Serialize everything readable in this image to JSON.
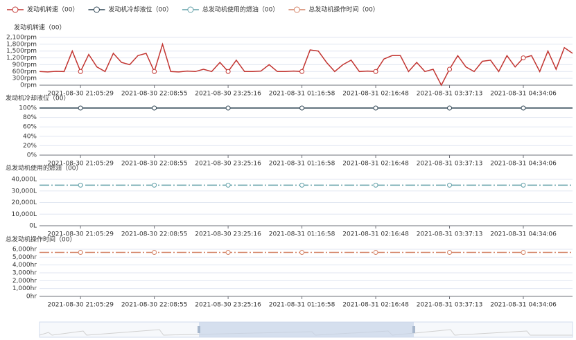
{
  "chart_data": [
    {
      "type": "line",
      "title": "发动机转速（00）",
      "categories": [
        null,
        null,
        null,
        null,
        null,
        "2021-08-30 21:05:29",
        null,
        null,
        null,
        null,
        null,
        null,
        null,
        null,
        "2021-08-30 22:08:55",
        null,
        null,
        null,
        null,
        null,
        null,
        null,
        null,
        "2021-08-30 23:25:16",
        null,
        null,
        null,
        null,
        null,
        null,
        null,
        null,
        "2021-08-31 01:16:58",
        null,
        null,
        null,
        null,
        null,
        null,
        null,
        null,
        "2021-08-31 02:16:48",
        null,
        null,
        null,
        null,
        null,
        null,
        null,
        null,
        "2021-08-31 03:37:13",
        null,
        null,
        null,
        null,
        null,
        null,
        null,
        null,
        "2021-08-31 04:34:06",
        null,
        null,
        null,
        null,
        null,
        null
      ],
      "series": [
        {
          "name": "发动机转速（00）",
          "color": "#c23531",
          "values": [
            600,
            580,
            610,
            600,
            1500,
            600,
            1350,
            800,
            600,
            1400,
            1000,
            900,
            1300,
            1400,
            600,
            1800,
            600,
            580,
            620,
            600,
            700,
            600,
            1000,
            600,
            1100,
            600,
            600,
            620,
            900,
            600,
            600,
            620,
            600,
            1550,
            1500,
            1000,
            600,
            900,
            1100,
            600,
            620,
            600,
            1150,
            1300,
            1300,
            600,
            1000,
            600,
            700,
            0,
            700,
            1300,
            800,
            600,
            1050,
            1100,
            600,
            1300,
            800,
            1200,
            1300,
            600,
            1500,
            700,
            1650,
            1400
          ]
        }
      ],
      "ylim": [
        0,
        2100
      ],
      "yticks": [
        {
          "value": 0,
          "label": "0rpm"
        },
        {
          "value": 300,
          "label": "300rpm"
        },
        {
          "value": 600,
          "label": "600rpm"
        },
        {
          "value": 900,
          "label": "900rpm"
        },
        {
          "value": 1200,
          "label": "1,200rpm"
        },
        {
          "value": 1500,
          "label": "1,500rpm"
        },
        {
          "value": 1800,
          "label": "1,800rpm"
        },
        {
          "value": 2100,
          "label": "2,100rpm"
        }
      ],
      "grid": true,
      "line_style": "solid"
    },
    {
      "type": "line",
      "title": "发动机冷却液位（00）",
      "categories": [
        null,
        null,
        null,
        null,
        null,
        "2021-08-30 21:05:29",
        null,
        null,
        null,
        null,
        null,
        null,
        null,
        null,
        "2021-08-30 22:08:55",
        null,
        null,
        null,
        null,
        null,
        null,
        null,
        null,
        "2021-08-30 23:25:16",
        null,
        null,
        null,
        null,
        null,
        null,
        null,
        null,
        "2021-08-31 01:16:58",
        null,
        null,
        null,
        null,
        null,
        null,
        null,
        null,
        "2021-08-31 02:16:48",
        null,
        null,
        null,
        null,
        null,
        null,
        null,
        null,
        "2021-08-31 03:37:13",
        null,
        null,
        null,
        null,
        null,
        null,
        null,
        null,
        "2021-08-31 04:34:06",
        null,
        null,
        null,
        null,
        null,
        null
      ],
      "series": [
        {
          "name": "发动机冷却液位（00）",
          "color": "#2f4554",
          "values": [
            100,
            100,
            100,
            100,
            100,
            100,
            100,
            100,
            100,
            100,
            100,
            100,
            100,
            100,
            100,
            100,
            100,
            100,
            100,
            100,
            100,
            100,
            100,
            100,
            100,
            100,
            100,
            100,
            100,
            100,
            100,
            100,
            100,
            100,
            100,
            100,
            100,
            100,
            100,
            100,
            100,
            100,
            100,
            100,
            100,
            100,
            100,
            100,
            100,
            100,
            100,
            100,
            100,
            100,
            100,
            100,
            100,
            100,
            100,
            100,
            100,
            100,
            100,
            100,
            100,
            100
          ]
        }
      ],
      "ylim": [
        0,
        100
      ],
      "yticks": [
        {
          "value": 0,
          "label": "0%"
        },
        {
          "value": 20,
          "label": "20%"
        },
        {
          "value": 40,
          "label": "40%"
        },
        {
          "value": 60,
          "label": "60%"
        },
        {
          "value": 80,
          "label": "80%"
        },
        {
          "value": 100,
          "label": "100%"
        }
      ],
      "grid": true,
      "line_style": "solid"
    },
    {
      "type": "line",
      "title": "总发动机使用的燃油（00）",
      "categories": [
        null,
        null,
        null,
        null,
        null,
        "2021-08-30 21:05:29",
        null,
        null,
        null,
        null,
        null,
        null,
        null,
        null,
        "2021-08-30 22:08:55",
        null,
        null,
        null,
        null,
        null,
        null,
        null,
        null,
        "2021-08-30 23:25:16",
        null,
        null,
        null,
        null,
        null,
        null,
        null,
        null,
        "2021-08-31 01:16:58",
        null,
        null,
        null,
        null,
        null,
        null,
        null,
        null,
        "2021-08-31 02:16:48",
        null,
        null,
        null,
        null,
        null,
        null,
        null,
        null,
        "2021-08-31 03:37:13",
        null,
        null,
        null,
        null,
        null,
        null,
        null,
        null,
        "2021-08-31 04:34:06",
        null,
        null,
        null,
        null,
        null,
        null
      ],
      "series": [
        {
          "name": "总发动机使用的燃油（00）",
          "color": "#61a0a8",
          "values": [
            35000,
            35000,
            35000,
            35000,
            35000,
            35000,
            35000,
            35000,
            35000,
            35000,
            35000,
            35000,
            35000,
            35000,
            35000,
            35000,
            35000,
            35000,
            35000,
            35000,
            35000,
            35000,
            35000,
            35000,
            35000,
            35000,
            35000,
            35000,
            35000,
            35000,
            35000,
            35000,
            35000,
            35000,
            35000,
            35000,
            35000,
            35000,
            35000,
            35000,
            35000,
            35000,
            35000,
            35000,
            35000,
            35000,
            35000,
            35000,
            35000,
            35000,
            35000,
            35000,
            35000,
            35000,
            35000,
            35000,
            35000,
            35000,
            35000,
            35000,
            35000,
            35000,
            35000,
            35000,
            35000,
            35000
          ]
        }
      ],
      "ylim": [
        0,
        40000
      ],
      "yticks": [
        {
          "value": 0,
          "label": "0L"
        },
        {
          "value": 10000,
          "label": "10,000L"
        },
        {
          "value": 20000,
          "label": "20,000L"
        },
        {
          "value": 30000,
          "label": "30,000L"
        },
        {
          "value": 40000,
          "label": "40,000L"
        }
      ],
      "grid": true,
      "line_style": "dash-dot"
    },
    {
      "type": "line",
      "title": "总发动机操作时间（00）",
      "categories": [
        null,
        null,
        null,
        null,
        null,
        "2021-08-30 21:05:29",
        null,
        null,
        null,
        null,
        null,
        null,
        null,
        null,
        "2021-08-30 22:08:55",
        null,
        null,
        null,
        null,
        null,
        null,
        null,
        null,
        "2021-08-30 23:25:16",
        null,
        null,
        null,
        null,
        null,
        null,
        null,
        null,
        "2021-08-31 01:16:58",
        null,
        null,
        null,
        null,
        null,
        null,
        null,
        null,
        "2021-08-31 02:16:48",
        null,
        null,
        null,
        null,
        null,
        null,
        null,
        null,
        "2021-08-31 03:37:13",
        null,
        null,
        null,
        null,
        null,
        null,
        null,
        null,
        "2021-08-31 04:34:06",
        null,
        null,
        null,
        null,
        null,
        null
      ],
      "series": [
        {
          "name": "总发动机操作时间（00）",
          "color": "#d48265",
          "values": [
            5600,
            5600,
            5600,
            5600,
            5600,
            5600,
            5600,
            5600,
            5600,
            5600,
            5600,
            5600,
            5600,
            5600,
            5600,
            5600,
            5600,
            5600,
            5600,
            5600,
            5600,
            5600,
            5600,
            5600,
            5600,
            5600,
            5600,
            5600,
            5600,
            5600,
            5600,
            5600,
            5600,
            5600,
            5600,
            5600,
            5600,
            5600,
            5600,
            5600,
            5600,
            5600,
            5600,
            5600,
            5600,
            5600,
            5600,
            5600,
            5600,
            5600,
            5600,
            5600,
            5600,
            5600,
            5600,
            5600,
            5600,
            5600,
            5600,
            5600,
            5600,
            5600,
            5600,
            5600,
            5600,
            5600
          ]
        }
      ],
      "ylim": [
        0,
        6000
      ],
      "yticks": [
        {
          "value": 0,
          "label": "0hr"
        },
        {
          "value": 1000,
          "label": "1,000hr"
        },
        {
          "value": 2000,
          "label": "2,000hr"
        },
        {
          "value": 3000,
          "label": "3,000hr"
        },
        {
          "value": 4000,
          "label": "4,000hr"
        },
        {
          "value": 5000,
          "label": "5,000hr"
        },
        {
          "value": 6000,
          "label": "6,000hr"
        }
      ],
      "grid": true,
      "line_style": "dash-dot"
    }
  ]
}
